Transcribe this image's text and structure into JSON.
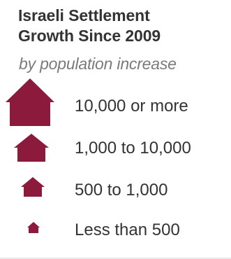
{
  "legend": {
    "title_line1": "Israeli Settlement",
    "title_line2": "Growth Since 2009",
    "subtitle": "by population increase",
    "marker_color": "#8c1a3c",
    "marker_icon": "house-icon",
    "items": [
      {
        "label": "10,000 or more"
      },
      {
        "label": "1,000 to 10,000"
      },
      {
        "label": "500 to 1,000"
      },
      {
        "label": "Less than 500"
      }
    ]
  }
}
